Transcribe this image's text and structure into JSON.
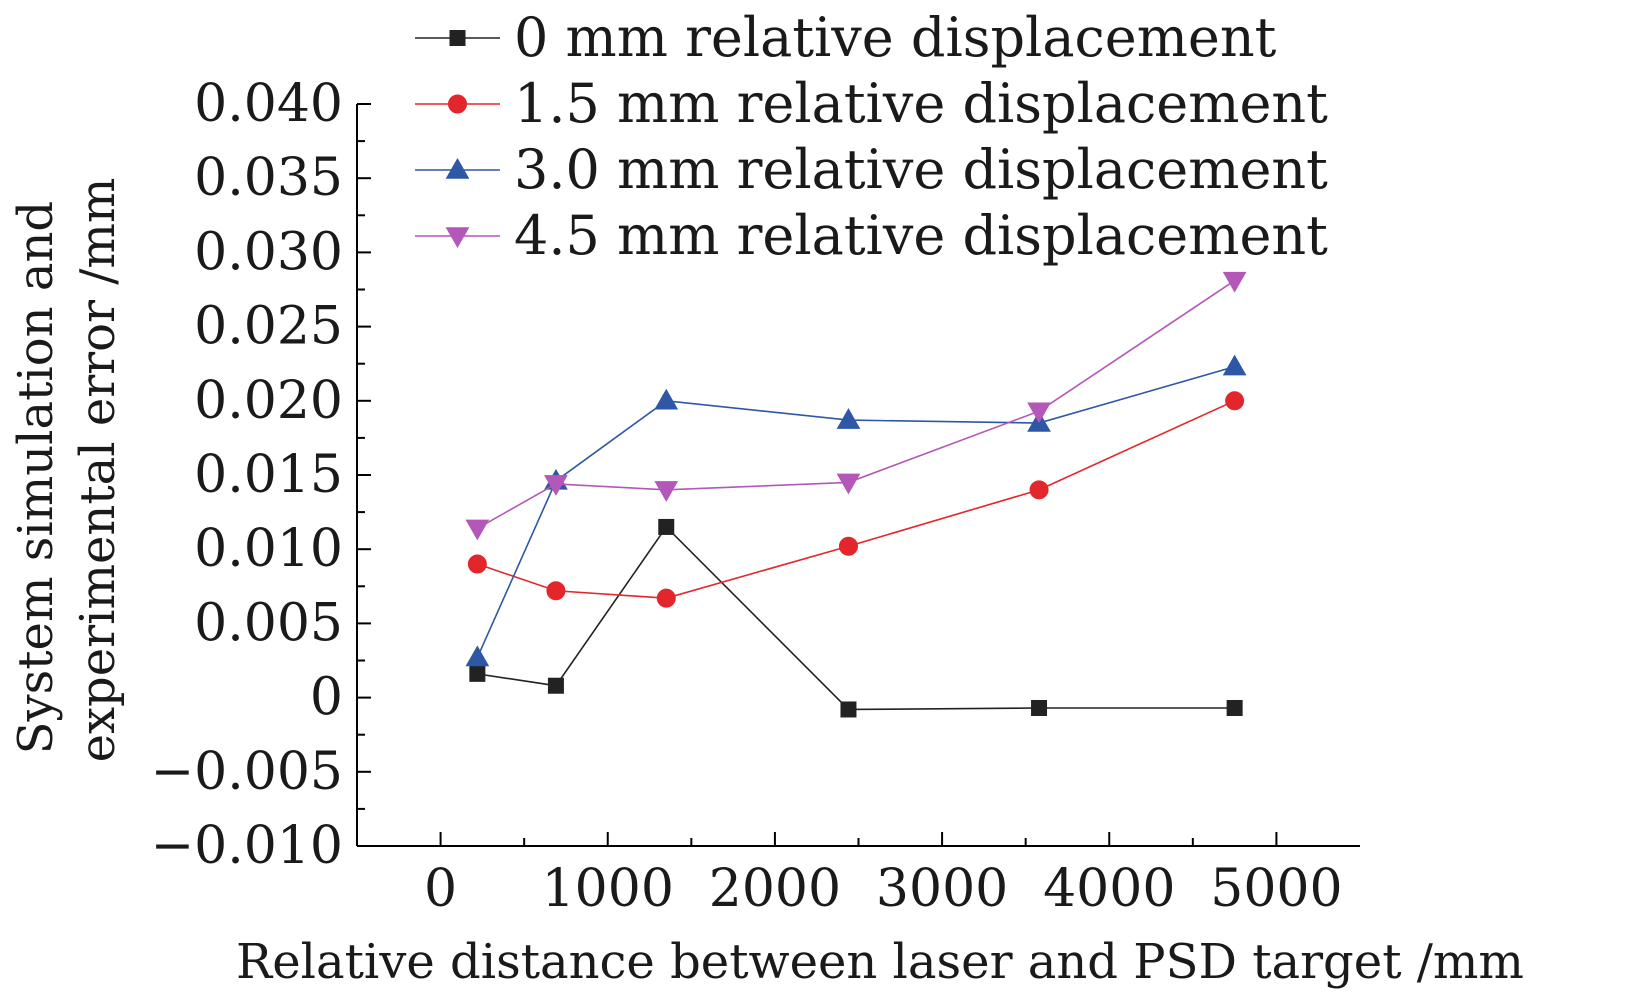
{
  "chart_data": {
    "type": "line",
    "title": "",
    "xlabel": "Relative distance between laser and PSD target /mm",
    "ylabel": "System simulation and experimental error /mm",
    "ylabel_lines": [
      "System simulation and",
      "experimental error /mm"
    ],
    "xlim": [
      -500,
      5500
    ],
    "ylim": [
      -0.01,
      0.04
    ],
    "xticks": [
      0,
      1000,
      2000,
      3000,
      4000,
      5000
    ],
    "xtick_labels": [
      "0",
      "1000",
      "2000",
      "3000",
      "4000",
      "5000"
    ],
    "yticks": [
      -0.01,
      -0.005,
      0,
      0.005,
      0.01,
      0.015,
      0.02,
      0.025,
      0.03,
      0.035,
      0.04
    ],
    "ytick_labels": [
      "−0.010",
      "−0.005",
      "0",
      "0.005",
      "0.010",
      "0.015",
      "0.020",
      "0.025",
      "0.030",
      "0.035",
      "0.040"
    ],
    "grid": false,
    "legend_position": "top",
    "x": [
      220,
      690,
      1350,
      2440,
      3580,
      4750
    ],
    "series": [
      {
        "name": "0 mm relative displacement",
        "marker": "square",
        "color": "#222222",
        "values": [
          0.0016,
          0.0008,
          0.0115,
          -0.0008,
          -0.0007,
          -0.0007
        ]
      },
      {
        "name": "1.5 mm relative displacement",
        "marker": "circle",
        "color": "#e3262c",
        "values": [
          0.009,
          0.0072,
          0.0067,
          0.0102,
          0.014,
          0.02
        ]
      },
      {
        "name": "3.0 mm relative displacement",
        "marker": "triangle-up",
        "color": "#2e57a5",
        "values": [
          0.0027,
          0.0146,
          0.02,
          0.0187,
          0.0185,
          0.0223
        ]
      },
      {
        "name": "4.5 mm relative displacement",
        "marker": "triangle-down",
        "color": "#b357b8",
        "values": [
          0.0114,
          0.0144,
          0.014,
          0.0145,
          0.0193,
          0.0281
        ]
      }
    ]
  }
}
